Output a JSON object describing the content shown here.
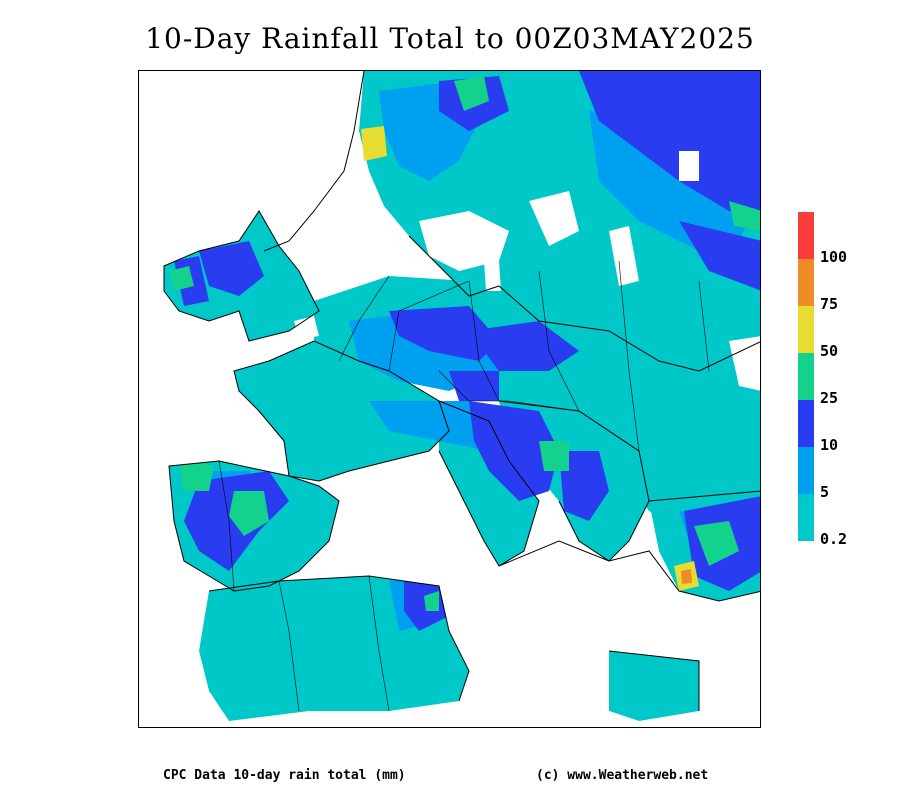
{
  "title": "10-Day Rainfall Total to 00Z03MAY2025",
  "footer": {
    "source": "CPC Data 10-day rain total (mm)",
    "credit": "(c) www.Weatherweb.net"
  },
  "legend": {
    "classes": [
      {
        "label": "0.2",
        "color": "#00c8c8"
      },
      {
        "label": "5",
        "color": "#00a0f0"
      },
      {
        "label": "10",
        "color": "#2a3cf0"
      },
      {
        "label": "25",
        "color": "#12d28c"
      },
      {
        "label": "50",
        "color": "#e6dc32"
      },
      {
        "label": "75",
        "color": "#f08c28"
      },
      {
        "label": "100",
        "color": "#fa3c3c"
      }
    ]
  },
  "colors": {
    "land_outline": "#000000",
    "no_data": "#ffffff"
  }
}
